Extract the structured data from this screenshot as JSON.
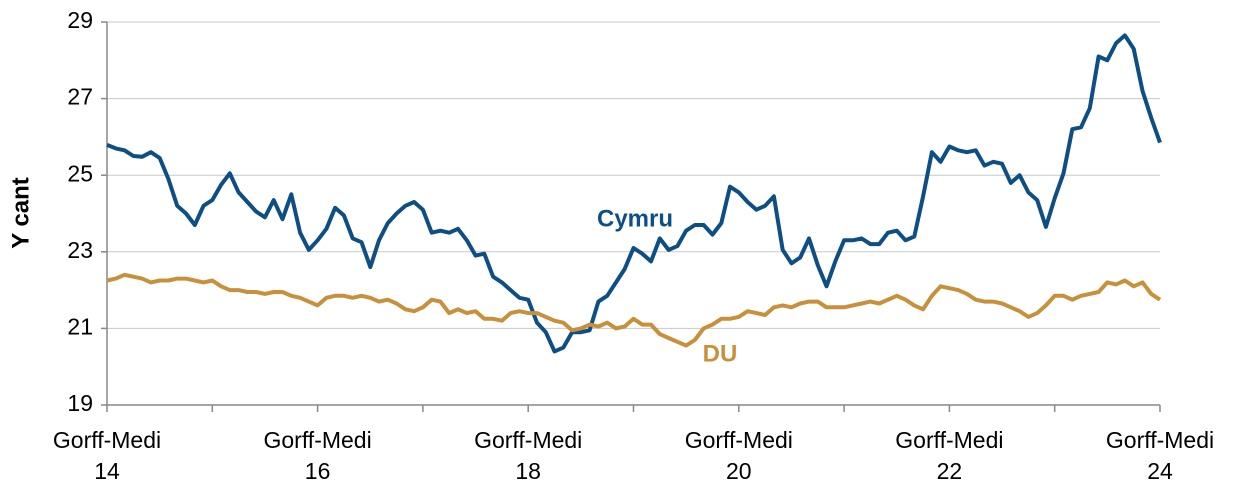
{
  "chart_data": {
    "type": "line",
    "ylabel": "Y cant",
    "categories": [
      "Gorff-Medi 14",
      null,
      null,
      null,
      null,
      null,
      null,
      null,
      null,
      null,
      null,
      null,
      null,
      null,
      null,
      null,
      null,
      null,
      null,
      null,
      null,
      null,
      null,
      null,
      "Gorff-Medi 16",
      null,
      null,
      null,
      null,
      null,
      null,
      null,
      null,
      null,
      null,
      null,
      null,
      null,
      null,
      null,
      null,
      null,
      null,
      null,
      null,
      null,
      null,
      null,
      "Gorff-Medi 18",
      null,
      null,
      null,
      null,
      null,
      null,
      null,
      null,
      null,
      null,
      null,
      null,
      null,
      null,
      null,
      null,
      null,
      null,
      null,
      null,
      null,
      null,
      null,
      "Gorff-Medi 20",
      null,
      null,
      null,
      null,
      null,
      null,
      null,
      null,
      null,
      null,
      null,
      null,
      null,
      null,
      null,
      null,
      null,
      null,
      null,
      null,
      null,
      null,
      null,
      "Gorff-Medi 22",
      null,
      null,
      null,
      null,
      null,
      null,
      null,
      null,
      null,
      null,
      null,
      null,
      null,
      null,
      null,
      null,
      null,
      null,
      null,
      null,
      null,
      null,
      null,
      "Gorff-Medi 24"
    ],
    "series": [
      {
        "name": "Cymru",
        "color": "#0d4e85",
        "values": [
          25.79,
          25.7,
          25.65,
          25.5,
          25.48,
          25.6,
          25.45,
          24.9,
          24.2,
          24.0,
          23.7,
          24.2,
          24.35,
          24.75,
          25.05,
          24.55,
          24.3,
          24.05,
          23.9,
          24.35,
          23.85,
          24.5,
          23.5,
          23.05,
          23.3,
          23.6,
          24.15,
          23.95,
          23.35,
          23.25,
          22.6,
          23.3,
          23.75,
          24.0,
          24.2,
          24.3,
          24.1,
          23.5,
          23.55,
          23.5,
          23.6,
          23.3,
          22.9,
          22.95,
          22.35,
          22.2,
          22.0,
          21.8,
          21.75,
          21.15,
          20.9,
          20.4,
          20.5,
          20.9,
          20.9,
          20.95,
          21.7,
          21.85,
          22.2,
          22.55,
          23.1,
          22.95,
          22.75,
          23.35,
          23.05,
          23.15,
          23.55,
          23.7,
          23.7,
          23.45,
          23.75,
          24.7,
          24.55,
          24.3,
          24.1,
          24.2,
          24.45,
          23.05,
          22.7,
          22.85,
          23.35,
          22.65,
          22.1,
          22.75,
          23.3,
          23.3,
          23.35,
          23.2,
          23.2,
          23.5,
          23.55,
          23.3,
          23.4,
          24.45,
          25.6,
          25.35,
          25.75,
          25.65,
          25.6,
          25.65,
          25.25,
          25.35,
          25.3,
          24.8,
          25.0,
          24.55,
          24.35,
          23.65,
          24.4,
          25.05,
          26.2,
          26.25,
          26.75,
          28.1,
          28.0,
          28.45,
          28.65,
          28.3,
          27.2,
          26.5,
          25.85
        ]
      },
      {
        "name": "DU",
        "color": "#c8903a",
        "values": [
          22.25,
          22.3,
          22.4,
          22.35,
          22.3,
          22.2,
          22.25,
          22.25,
          22.3,
          22.3,
          22.25,
          22.2,
          22.25,
          22.1,
          22.0,
          22.0,
          21.95,
          21.95,
          21.9,
          21.95,
          21.95,
          21.85,
          21.8,
          21.7,
          21.6,
          21.8,
          21.85,
          21.85,
          21.8,
          21.85,
          21.8,
          21.7,
          21.75,
          21.65,
          21.5,
          21.45,
          21.55,
          21.75,
          21.7,
          21.4,
          21.5,
          21.4,
          21.45,
          21.25,
          21.25,
          21.2,
          21.4,
          21.45,
          21.4,
          21.4,
          21.3,
          21.2,
          21.15,
          20.95,
          21.0,
          21.1,
          21.05,
          21.15,
          21.0,
          21.05,
          21.25,
          21.1,
          21.1,
          20.85,
          20.75,
          20.65,
          20.55,
          20.7,
          21.0,
          21.1,
          21.25,
          21.25,
          21.3,
          21.45,
          21.4,
          21.35,
          21.55,
          21.6,
          21.55,
          21.65,
          21.7,
          21.7,
          21.55,
          21.55,
          21.55,
          21.6,
          21.65,
          21.7,
          21.65,
          21.75,
          21.85,
          21.75,
          21.6,
          21.5,
          21.85,
          22.1,
          22.05,
          22.0,
          21.9,
          21.75,
          21.7,
          21.7,
          21.65,
          21.55,
          21.45,
          21.3,
          21.4,
          21.6,
          21.85,
          21.85,
          21.75,
          21.85,
          21.9,
          21.95,
          22.2,
          22.15,
          22.25,
          22.1,
          22.2,
          21.9,
          21.75
        ]
      }
    ],
    "ylim": [
      19,
      29
    ],
    "yticks": [
      19,
      21,
      23,
      25,
      27,
      29
    ],
    "grid": true
  }
}
